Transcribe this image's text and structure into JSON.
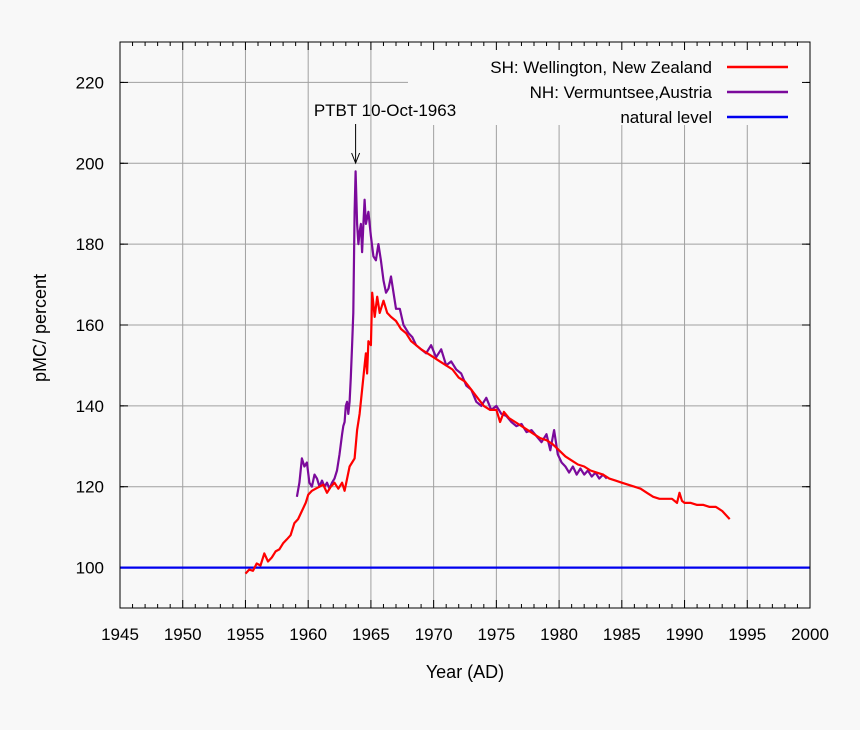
{
  "chart_data": {
    "type": "line",
    "title": "",
    "xlabel": "Year (AD)",
    "ylabel": "pMC/ percent",
    "xlim": [
      1945,
      2000
    ],
    "ylim": [
      90,
      230
    ],
    "x_ticks": [
      "1945",
      "1950",
      "1955",
      "1960",
      "1965",
      "1970",
      "1975",
      "1980",
      "1985",
      "1990",
      "1995",
      "2000"
    ],
    "y_ticks": [
      "100",
      "120",
      "140",
      "160",
      "180",
      "200",
      "220"
    ],
    "grid": true,
    "legend_position": "top-right",
    "annotation": {
      "text": "PTBT 10-Oct-1963",
      "x": 1963.78,
      "y": 198
    },
    "series": [
      {
        "name": "SH: Wellington, New Zealand",
        "color": "#ff0000",
        "points": [
          [
            1955.0,
            98.5
          ],
          [
            1955.3,
            99.5
          ],
          [
            1955.6,
            99.2
          ],
          [
            1955.9,
            101.0
          ],
          [
            1956.2,
            100.5
          ],
          [
            1956.5,
            103.5
          ],
          [
            1956.8,
            101.5
          ],
          [
            1957.1,
            102.5
          ],
          [
            1957.4,
            104.0
          ],
          [
            1957.7,
            104.5
          ],
          [
            1958.0,
            106.0
          ],
          [
            1958.3,
            107.0
          ],
          [
            1958.6,
            108.0
          ],
          [
            1958.9,
            111.0
          ],
          [
            1959.2,
            112.0
          ],
          [
            1959.5,
            114.0
          ],
          [
            1959.8,
            116.0
          ],
          [
            1960.0,
            118.0
          ],
          [
            1960.3,
            119.0
          ],
          [
            1960.6,
            119.5
          ],
          [
            1960.9,
            120.0
          ],
          [
            1961.2,
            120.5
          ],
          [
            1961.5,
            118.5
          ],
          [
            1961.8,
            120.0
          ],
          [
            1962.1,
            121.0
          ],
          [
            1962.4,
            119.5
          ],
          [
            1962.7,
            121.0
          ],
          [
            1962.9,
            119.0
          ],
          [
            1963.1,
            122.0
          ],
          [
            1963.3,
            125.0
          ],
          [
            1963.5,
            126.0
          ],
          [
            1963.7,
            127.0
          ],
          [
            1963.9,
            134.0
          ],
          [
            1964.1,
            138.0
          ],
          [
            1964.3,
            144.0
          ],
          [
            1964.5,
            150.0
          ],
          [
            1964.6,
            153.0
          ],
          [
            1964.7,
            148.0
          ],
          [
            1964.8,
            156.0
          ],
          [
            1965.0,
            155.0
          ],
          [
            1965.1,
            168.0
          ],
          [
            1965.3,
            162.0
          ],
          [
            1965.5,
            167.0
          ],
          [
            1965.7,
            163.0
          ],
          [
            1966.0,
            166.0
          ],
          [
            1966.3,
            163.0
          ],
          [
            1966.6,
            162.0
          ],
          [
            1967.0,
            161.0
          ],
          [
            1967.4,
            159.0
          ],
          [
            1967.8,
            158.0
          ],
          [
            1968.2,
            156.0
          ],
          [
            1968.6,
            155.0
          ],
          [
            1969.0,
            154.0
          ],
          [
            1969.5,
            153.0
          ],
          [
            1970.0,
            152.0
          ],
          [
            1970.5,
            151.0
          ],
          [
            1971.0,
            150.0
          ],
          [
            1971.5,
            149.0
          ],
          [
            1972.0,
            147.0
          ],
          [
            1972.5,
            146.0
          ],
          [
            1973.0,
            144.0
          ],
          [
            1973.5,
            142.0
          ],
          [
            1974.0,
            140.0
          ],
          [
            1974.5,
            139.0
          ],
          [
            1975.0,
            139.0
          ],
          [
            1975.3,
            136.0
          ],
          [
            1975.6,
            138.5
          ],
          [
            1976.0,
            137.0
          ],
          [
            1976.5,
            136.0
          ],
          [
            1977.0,
            135.0
          ],
          [
            1977.5,
            134.0
          ],
          [
            1978.0,
            133.0
          ],
          [
            1978.5,
            132.0
          ],
          [
            1979.0,
            131.5
          ],
          [
            1979.5,
            130.5
          ],
          [
            1980.0,
            129.0
          ],
          [
            1980.5,
            127.5
          ],
          [
            1981.0,
            126.5
          ],
          [
            1981.5,
            125.5
          ],
          [
            1982.0,
            125.0
          ],
          [
            1982.5,
            124.0
          ],
          [
            1983.0,
            123.5
          ],
          [
            1983.5,
            123.0
          ],
          [
            1984.0,
            122.0
          ],
          [
            1984.5,
            121.5
          ],
          [
            1985.0,
            121.0
          ],
          [
            1985.5,
            120.5
          ],
          [
            1986.0,
            120.0
          ],
          [
            1986.5,
            119.5
          ],
          [
            1987.0,
            118.5
          ],
          [
            1987.5,
            117.5
          ],
          [
            1988.0,
            117.0
          ],
          [
            1988.5,
            117.0
          ],
          [
            1989.0,
            117.0
          ],
          [
            1989.4,
            116.0
          ],
          [
            1989.6,
            118.5
          ],
          [
            1989.8,
            116.5
          ],
          [
            1990.0,
            116.0
          ],
          [
            1990.5,
            116.0
          ],
          [
            1991.0,
            115.5
          ],
          [
            1991.5,
            115.5
          ],
          [
            1992.0,
            115.0
          ],
          [
            1992.5,
            115.0
          ],
          [
            1993.0,
            114.0
          ],
          [
            1993.3,
            113.0
          ],
          [
            1993.6,
            112.0
          ]
        ]
      },
      {
        "name": "NH: Vermuntsee,Austria",
        "color": "#7b0a9b",
        "points": [
          [
            1959.1,
            117.5
          ],
          [
            1959.3,
            121.0
          ],
          [
            1959.5,
            127.0
          ],
          [
            1959.7,
            125.0
          ],
          [
            1959.9,
            126.0
          ],
          [
            1960.1,
            121.0
          ],
          [
            1960.3,
            120.0
          ],
          [
            1960.5,
            123.0
          ],
          [
            1960.7,
            122.0
          ],
          [
            1960.9,
            120.0
          ],
          [
            1961.1,
            121.5
          ],
          [
            1961.3,
            120.0
          ],
          [
            1961.5,
            121.0
          ],
          [
            1961.7,
            119.5
          ],
          [
            1961.9,
            121.0
          ],
          [
            1962.1,
            122.0
          ],
          [
            1962.3,
            124.0
          ],
          [
            1962.5,
            128.0
          ],
          [
            1962.7,
            133.0
          ],
          [
            1962.8,
            135.0
          ],
          [
            1962.9,
            136.0
          ],
          [
            1963.0,
            140.0
          ],
          [
            1963.1,
            141.0
          ],
          [
            1963.2,
            138.0
          ],
          [
            1963.3,
            141.0
          ],
          [
            1963.4,
            147.0
          ],
          [
            1963.5,
            155.0
          ],
          [
            1963.6,
            163.0
          ],
          [
            1963.7,
            188.0
          ],
          [
            1963.78,
            198.0
          ],
          [
            1963.9,
            185.0
          ],
          [
            1964.0,
            180.0
          ],
          [
            1964.1,
            183.0
          ],
          [
            1964.2,
            185.0
          ],
          [
            1964.3,
            178.0
          ],
          [
            1964.4,
            185.0
          ],
          [
            1964.5,
            191.0
          ],
          [
            1964.6,
            185.0
          ],
          [
            1964.8,
            188.0
          ],
          [
            1965.0,
            182.0
          ],
          [
            1965.2,
            177.0
          ],
          [
            1965.4,
            176.0
          ],
          [
            1965.6,
            180.0
          ],
          [
            1965.8,
            176.0
          ],
          [
            1966.0,
            171.0
          ],
          [
            1966.2,
            168.0
          ],
          [
            1966.4,
            169.0
          ],
          [
            1966.6,
            172.0
          ],
          [
            1966.8,
            168.0
          ],
          [
            1967.0,
            164.0
          ],
          [
            1967.3,
            164.0
          ],
          [
            1967.6,
            160.0
          ],
          [
            1968.0,
            158.0
          ],
          [
            1968.3,
            157.0
          ],
          [
            1968.6,
            155.0
          ],
          [
            1969.0,
            154.0
          ],
          [
            1969.4,
            153.0
          ],
          [
            1969.8,
            155.0
          ],
          [
            1970.2,
            152.0
          ],
          [
            1970.6,
            154.0
          ],
          [
            1971.0,
            150.0
          ],
          [
            1971.4,
            151.0
          ],
          [
            1971.8,
            149.0
          ],
          [
            1972.2,
            148.0
          ],
          [
            1972.6,
            145.0
          ],
          [
            1973.0,
            144.0
          ],
          [
            1973.4,
            141.0
          ],
          [
            1973.8,
            140.0
          ],
          [
            1974.2,
            142.0
          ],
          [
            1974.6,
            139.0
          ],
          [
            1975.0,
            140.0
          ],
          [
            1975.4,
            138.0
          ],
          [
            1975.8,
            137.5
          ],
          [
            1976.2,
            136.0
          ],
          [
            1976.6,
            135.0
          ],
          [
            1977.0,
            135.5
          ],
          [
            1977.4,
            133.5
          ],
          [
            1977.8,
            134.0
          ],
          [
            1978.2,
            132.5
          ],
          [
            1978.6,
            131.0
          ],
          [
            1979.0,
            133.0
          ],
          [
            1979.3,
            129.0
          ],
          [
            1979.6,
            134.0
          ],
          [
            1979.9,
            128.0
          ],
          [
            1980.2,
            126.0
          ],
          [
            1980.5,
            125.0
          ],
          [
            1980.8,
            123.5
          ],
          [
            1981.1,
            125.0
          ],
          [
            1981.4,
            123.0
          ],
          [
            1981.7,
            124.5
          ],
          [
            1982.0,
            123.0
          ],
          [
            1982.3,
            124.0
          ],
          [
            1982.6,
            122.5
          ],
          [
            1982.9,
            123.5
          ],
          [
            1983.2,
            122.0
          ],
          [
            1983.5,
            123.0
          ],
          [
            1983.8,
            122.0
          ]
        ]
      },
      {
        "name": "natural level",
        "color": "#0000ee",
        "points": [
          [
            1945,
            100
          ],
          [
            2000,
            100
          ]
        ]
      }
    ]
  }
}
